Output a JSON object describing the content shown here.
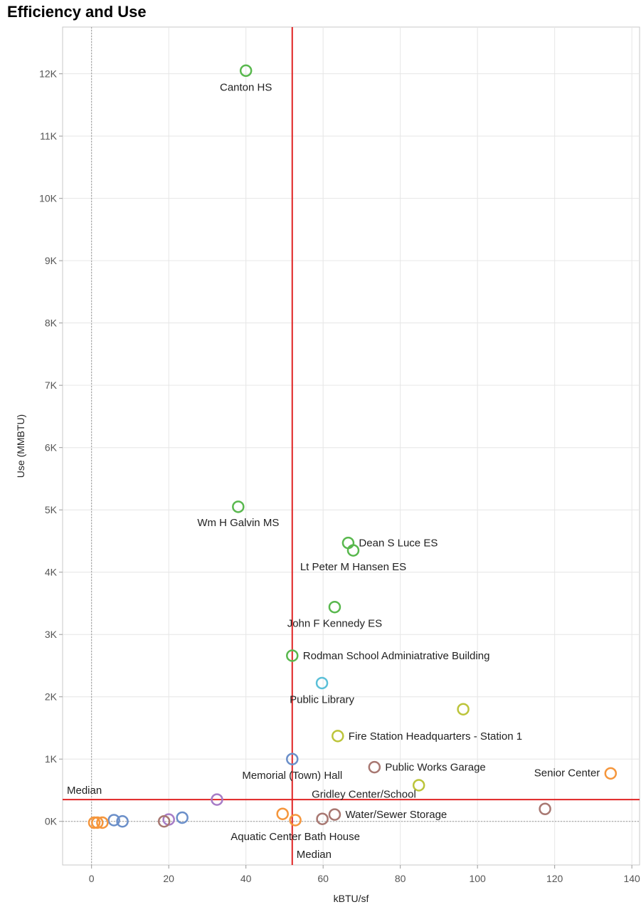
{
  "chart_data": {
    "type": "scatter",
    "title": "Efficiency and Use",
    "xlabel": "kBTU/sf",
    "ylabel": "Use (MMBTU)",
    "xlim": [
      -7.5,
      142
    ],
    "ylim": [
      -700,
      12750
    ],
    "x_ticks": [
      0,
      20,
      40,
      60,
      80,
      100,
      120,
      140
    ],
    "x_tick_labels": [
      "0",
      "20",
      "40",
      "60",
      "80",
      "100",
      "120",
      "140"
    ],
    "y_ticks": [
      0,
      1000,
      2000,
      3000,
      4000,
      5000,
      6000,
      7000,
      8000,
      9000,
      10000,
      11000,
      12000
    ],
    "y_tick_labels": [
      "0K",
      "1K",
      "2K",
      "3K",
      "4K",
      "5K",
      "6K",
      "7K",
      "8K",
      "9K",
      "10K",
      "11K",
      "12K"
    ],
    "grid": true,
    "reference_lines": {
      "x_median": 52,
      "y_median": 350,
      "x_label": "Median",
      "y_label": "Median",
      "color": "#e02424"
    },
    "points": [
      {
        "x": 40,
        "y": 12050,
        "color": "#59b84e",
        "label": "Canton HS",
        "label_pos": "below"
      },
      {
        "x": 38,
        "y": 5050,
        "color": "#59b84e",
        "label": "Wm H Galvin MS",
        "label_pos": "below-left"
      },
      {
        "x": 66.5,
        "y": 4470,
        "color": "#59b84e",
        "label": "Dean S Luce ES",
        "label_pos": "right"
      },
      {
        "x": 67.8,
        "y": 4350,
        "color": "#59b84e",
        "label": "Lt Peter M Hansen ES",
        "label_pos": "below"
      },
      {
        "x": 63,
        "y": 3440,
        "color": "#59b84e",
        "label": "John F Kennedy ES",
        "label_pos": "below"
      },
      {
        "x": 52,
        "y": 2660,
        "color": "#59b84e",
        "label": "Rodman School Adminiatrative Building",
        "label_pos": "right"
      },
      {
        "x": 59.7,
        "y": 2220,
        "color": "#5bc0d8",
        "label": "Public Library",
        "label_pos": "below"
      },
      {
        "x": 96.3,
        "y": 1800,
        "color": "#bcc43a",
        "label": "",
        "label_pos": "none"
      },
      {
        "x": 63.8,
        "y": 1370,
        "color": "#bcc43a",
        "label": "Fire Station Headquarters - Station 1",
        "label_pos": "right"
      },
      {
        "x": 52,
        "y": 1000,
        "color": "#6b8fc9",
        "label": "Memorial (Town) Hall",
        "label_pos": "below"
      },
      {
        "x": 73.3,
        "y": 870,
        "color": "#a87872",
        "label": "Public Works Garage",
        "label_pos": "right"
      },
      {
        "x": 134.5,
        "y": 770,
        "color": "#f5963c",
        "label": "Senior Center",
        "label_pos": "left"
      },
      {
        "x": 84.8,
        "y": 580,
        "color": "#bcc43a",
        "label": "",
        "label_pos": "none"
      },
      {
        "x": 32.5,
        "y": 350,
        "color": "#a77cc7",
        "label": "",
        "label_pos": "none"
      },
      {
        "x": 117.5,
        "y": 200,
        "color": "#a87872",
        "label": "",
        "label_pos": "none"
      },
      {
        "x": 49.5,
        "y": 120,
        "color": "#f5963c",
        "label": "",
        "label_pos": "none"
      },
      {
        "x": 52.8,
        "y": 20,
        "color": "#f5963c",
        "label": "Aquatic Center Bath House",
        "label_pos": "below"
      },
      {
        "x": 59.8,
        "y": 40,
        "color": "#a87872",
        "label": "",
        "label_pos": "none"
      },
      {
        "x": 63,
        "y": 110,
        "color": "#a87872",
        "label": "Water/Sewer Storage",
        "label_pos": "right"
      },
      {
        "x": 23.5,
        "y": 60,
        "color": "#6b8fc9",
        "label": "",
        "label_pos": "none"
      },
      {
        "x": 20,
        "y": 30,
        "color": "#a77cc7",
        "label": "",
        "label_pos": "none"
      },
      {
        "x": 18.8,
        "y": 0,
        "color": "#a87872",
        "label": "",
        "label_pos": "none"
      },
      {
        "x": 5.8,
        "y": 20,
        "color": "#6b8fc9",
        "label": "",
        "label_pos": "none"
      },
      {
        "x": 8,
        "y": 0,
        "color": "#6b8fc9",
        "label": "",
        "label_pos": "none"
      },
      {
        "x": 2.8,
        "y": -20,
        "color": "#f5963c",
        "label": "",
        "label_pos": "none"
      },
      {
        "x": 1.5,
        "y": -20,
        "color": "#f5963c",
        "label": "",
        "label_pos": "none"
      },
      {
        "x": 0.7,
        "y": -20,
        "color": "#f5963c",
        "label": "",
        "label_pos": "none"
      }
    ],
    "extra_labels": [
      {
        "text": "Gridley Center/School",
        "near_x": 66.5,
        "near_y": 400
      }
    ]
  }
}
